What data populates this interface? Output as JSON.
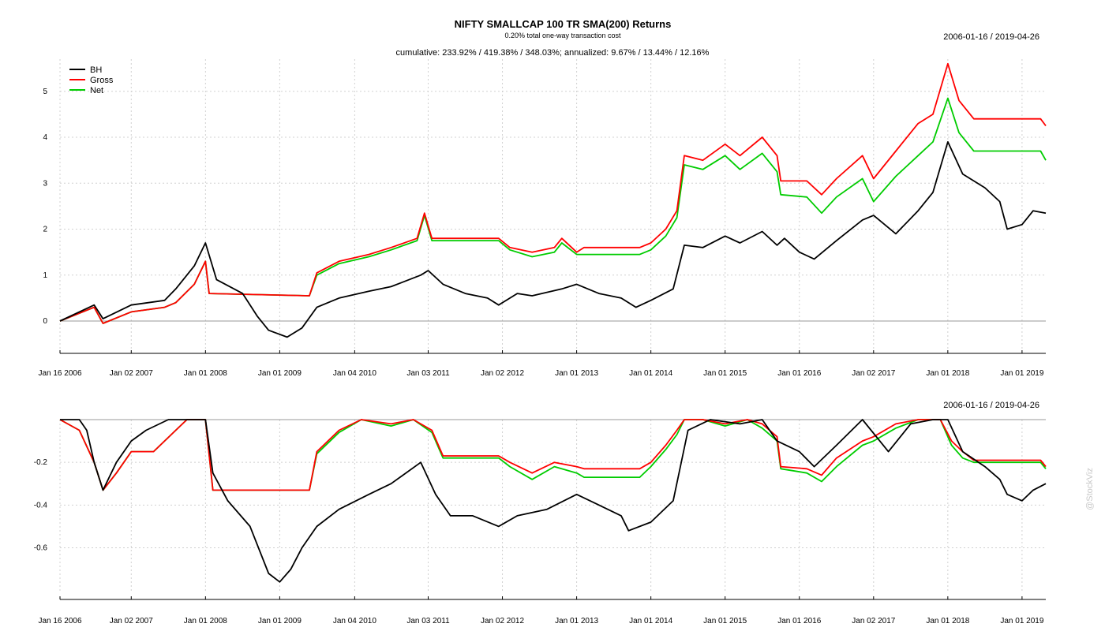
{
  "chart_data": [
    {
      "type": "line",
      "title": "NIFTY SMALLCAP 100 TR SMA(200) Returns",
      "subtitle": "0.20% total one-way transaction cost",
      "stats": "cumulative: 233.92% / 419.38% / 348.03%; annualized: 9.67% / 13.44% / 12.16%",
      "date_range": "2006-01-16 / 2019-04-26",
      "x_range": [
        "2006-01-16",
        "2019-04-26"
      ],
      "x_tick_labels": [
        "Jan 16 2006",
        "Jan 02 2007",
        "Jan 01 2008",
        "Jan 01 2009",
        "Jan 04 2010",
        "Jan 03 2011",
        "Jan 02 2012",
        "Jan 01 2013",
        "Jan 01 2014",
        "Jan 01 2015",
        "Jan 01 2016",
        "Jan 02 2017",
        "Jan 01 2018",
        "Jan 01 2019"
      ],
      "x_ticks": [
        2006.04,
        2007.0,
        2008.0,
        2009.0,
        2010.01,
        2011.0,
        2012.0,
        2013.0,
        2014.0,
        2015.0,
        2016.0,
        2017.0,
        2018.0,
        2019.0
      ],
      "y_ticks": [
        0,
        1,
        2,
        3,
        4,
        5
      ],
      "ylim": [
        -0.6,
        5.7
      ],
      "grid": true,
      "legend_position": "top-left",
      "series": [
        {
          "name": "BH",
          "color": "#000000",
          "x": [
            2006.04,
            2006.5,
            2006.62,
            2007.0,
            2007.45,
            2007.6,
            2007.85,
            2008.0,
            2008.15,
            2008.5,
            2008.7,
            2008.85,
            2009.1,
            2009.3,
            2009.5,
            2009.8,
            2010.2,
            2010.5,
            2010.9,
            2011.0,
            2011.2,
            2011.5,
            2011.8,
            2011.95,
            2012.2,
            2012.4,
            2012.8,
            2013.0,
            2013.3,
            2013.6,
            2013.8,
            2014.0,
            2014.3,
            2014.45,
            2014.7,
            2015.0,
            2015.2,
            2015.5,
            2015.7,
            2015.8,
            2016.0,
            2016.2,
            2016.5,
            2016.85,
            2017.0,
            2017.3,
            2017.6,
            2017.8,
            2018.0,
            2018.2,
            2018.5,
            2018.7,
            2018.8,
            2019.0,
            2019.15,
            2019.32
          ],
          "y": [
            0,
            0.35,
            0.05,
            0.35,
            0.45,
            0.7,
            1.2,
            1.7,
            0.9,
            0.6,
            0.1,
            -0.2,
            -0.35,
            -0.15,
            0.3,
            0.5,
            0.65,
            0.75,
            1.0,
            1.1,
            0.8,
            0.6,
            0.5,
            0.35,
            0.6,
            0.55,
            0.7,
            0.8,
            0.6,
            0.5,
            0.3,
            0.45,
            0.7,
            1.65,
            1.6,
            1.85,
            1.7,
            1.95,
            1.65,
            1.8,
            1.5,
            1.35,
            1.75,
            2.2,
            2.3,
            1.9,
            2.4,
            2.8,
            3.9,
            3.2,
            2.9,
            2.6,
            2.0,
            2.1,
            2.4,
            2.35
          ]
        },
        {
          "name": "Gross",
          "color": "#ff0000",
          "x": [
            2006.04,
            2006.5,
            2006.62,
            2007.0,
            2007.45,
            2007.6,
            2007.85,
            2008.0,
            2008.05,
            2009.4,
            2009.5,
            2009.8,
            2010.2,
            2010.5,
            2010.85,
            2010.95,
            2011.05,
            2011.95,
            2012.1,
            2012.4,
            2012.7,
            2012.8,
            2013.0,
            2013.1,
            2013.85,
            2014.0,
            2014.2,
            2014.35,
            2014.45,
            2014.7,
            2015.0,
            2015.2,
            2015.5,
            2015.7,
            2015.75,
            2016.1,
            2016.3,
            2016.5,
            2016.85,
            2017.0,
            2017.3,
            2017.6,
            2017.8,
            2018.0,
            2018.15,
            2018.35,
            2019.25,
            2019.32
          ],
          "y": [
            0,
            0.3,
            -0.05,
            0.2,
            0.3,
            0.4,
            0.8,
            1.3,
            0.6,
            0.55,
            1.05,
            1.3,
            1.45,
            1.6,
            1.8,
            2.35,
            1.8,
            1.8,
            1.6,
            1.5,
            1.6,
            1.8,
            1.5,
            1.6,
            1.6,
            1.7,
            2.0,
            2.4,
            3.6,
            3.5,
            3.85,
            3.6,
            4.0,
            3.6,
            3.05,
            3.05,
            2.75,
            3.1,
            3.6,
            3.1,
            3.7,
            4.3,
            4.5,
            5.6,
            4.8,
            4.4,
            4.4,
            4.25
          ]
        },
        {
          "name": "Net",
          "color": "#00cc00",
          "x": [
            2006.04,
            2006.5,
            2006.62,
            2007.0,
            2007.45,
            2007.6,
            2007.85,
            2008.0,
            2008.05,
            2009.4,
            2009.5,
            2009.8,
            2010.2,
            2010.5,
            2010.85,
            2010.95,
            2011.05,
            2011.95,
            2012.1,
            2012.4,
            2012.7,
            2012.8,
            2013.0,
            2013.1,
            2013.85,
            2014.0,
            2014.2,
            2014.35,
            2014.45,
            2014.7,
            2015.0,
            2015.2,
            2015.5,
            2015.7,
            2015.75,
            2016.1,
            2016.3,
            2016.5,
            2016.85,
            2017.0,
            2017.3,
            2017.6,
            2017.8,
            2018.0,
            2018.15,
            2018.35,
            2019.25,
            2019.32
          ],
          "y": [
            0,
            0.3,
            -0.05,
            0.2,
            0.3,
            0.4,
            0.8,
            1.3,
            0.6,
            0.55,
            1.0,
            1.25,
            1.4,
            1.55,
            1.75,
            2.3,
            1.75,
            1.75,
            1.55,
            1.4,
            1.5,
            1.7,
            1.45,
            1.45,
            1.45,
            1.55,
            1.85,
            2.25,
            3.4,
            3.3,
            3.6,
            3.3,
            3.65,
            3.25,
            2.75,
            2.7,
            2.35,
            2.7,
            3.1,
            2.6,
            3.15,
            3.6,
            3.9,
            4.85,
            4.1,
            3.7,
            3.7,
            3.5
          ]
        }
      ]
    },
    {
      "type": "line",
      "title": "",
      "date_range": "2006-01-16 / 2019-04-26",
      "x_range": [
        "2006-01-16",
        "2019-04-26"
      ],
      "x_tick_labels": [
        "Jan 16 2006",
        "Jan 02 2007",
        "Jan 01 2008",
        "Jan 01 2009",
        "Jan 04 2010",
        "Jan 03 2011",
        "Jan 02 2012",
        "Jan 01 2013",
        "Jan 01 2014",
        "Jan 01 2015",
        "Jan 01 2016",
        "Jan 02 2017",
        "Jan 01 2018",
        "Jan 01 2019"
      ],
      "x_ticks": [
        2006.04,
        2007.0,
        2008.0,
        2009.0,
        2010.01,
        2011.0,
        2012.0,
        2013.0,
        2014.0,
        2015.0,
        2016.0,
        2017.0,
        2018.0,
        2019.0
      ],
      "y_ticks": [
        -0.2,
        -0.4,
        -0.6
      ],
      "y_tick_labels": [
        "-0.2",
        "-0.4",
        "-0.6"
      ],
      "ylim": [
        -0.805,
        0.0
      ],
      "grid": true,
      "series": [
        {
          "name": "BH",
          "color": "#000000",
          "x": [
            2006.04,
            2006.3,
            2006.4,
            2006.5,
            2006.62,
            2006.8,
            2007.0,
            2007.2,
            2007.5,
            2007.8,
            2008.0,
            2008.1,
            2008.3,
            2008.6,
            2008.85,
            2009.0,
            2009.15,
            2009.3,
            2009.5,
            2009.8,
            2010.2,
            2010.5,
            2010.9,
            2011.1,
            2011.3,
            2011.6,
            2011.95,
            2012.2,
            2012.6,
            2013.0,
            2013.3,
            2013.6,
            2013.7,
            2014.0,
            2014.3,
            2014.5,
            2014.8,
            2015.2,
            2015.5,
            2015.7,
            2016.0,
            2016.2,
            2016.5,
            2016.85,
            2017.2,
            2017.5,
            2017.8,
            2018.0,
            2018.2,
            2018.5,
            2018.7,
            2018.8,
            2019.0,
            2019.15,
            2019.32
          ],
          "y": [
            0,
            0,
            -0.05,
            -0.2,
            -0.33,
            -0.2,
            -0.1,
            -0.05,
            0,
            0,
            0,
            -0.25,
            -0.38,
            -0.5,
            -0.72,
            -0.76,
            -0.7,
            -0.6,
            -0.5,
            -0.42,
            -0.35,
            -0.3,
            -0.2,
            -0.35,
            -0.45,
            -0.45,
            -0.5,
            -0.45,
            -0.42,
            -0.35,
            -0.4,
            -0.45,
            -0.52,
            -0.48,
            -0.38,
            -0.05,
            0,
            -0.02,
            0,
            -0.1,
            -0.15,
            -0.22,
            -0.12,
            0,
            -0.15,
            -0.02,
            0,
            0,
            -0.15,
            -0.22,
            -0.28,
            -0.35,
            -0.38,
            -0.33,
            -0.3
          ]
        },
        {
          "name": "Gross",
          "color": "#ff0000",
          "x": [
            2006.04,
            2006.3,
            2006.5,
            2006.62,
            2006.8,
            2007.0,
            2007.3,
            2007.6,
            2007.75,
            2008.0,
            2008.1,
            2009.4,
            2009.5,
            2009.8,
            2010.1,
            2010.5,
            2010.8,
            2011.05,
            2011.2,
            2011.95,
            2012.1,
            2012.4,
            2012.7,
            2013.0,
            2013.1,
            2013.85,
            2014.0,
            2014.2,
            2014.35,
            2014.45,
            2014.7,
            2015.0,
            2015.3,
            2015.5,
            2015.7,
            2015.75,
            2016.1,
            2016.3,
            2016.5,
            2016.85,
            2017.0,
            2017.3,
            2017.6,
            2017.9,
            2018.05,
            2018.2,
            2018.35,
            2019.25,
            2019.32
          ],
          "y": [
            0,
            -0.05,
            -0.2,
            -0.33,
            -0.25,
            -0.15,
            -0.15,
            -0.05,
            0,
            0,
            -0.33,
            -0.33,
            -0.15,
            -0.05,
            0,
            -0.02,
            0,
            -0.05,
            -0.17,
            -0.17,
            -0.2,
            -0.25,
            -0.2,
            -0.22,
            -0.23,
            -0.23,
            -0.2,
            -0.12,
            -0.05,
            0,
            0,
            -0.02,
            0,
            -0.02,
            -0.08,
            -0.22,
            -0.23,
            -0.26,
            -0.18,
            -0.1,
            -0.08,
            -0.02,
            0,
            0,
            -0.1,
            -0.15,
            -0.19,
            -0.19,
            -0.22
          ]
        },
        {
          "name": "Net",
          "color": "#00cc00",
          "x": [
            2006.04,
            2006.3,
            2006.5,
            2006.62,
            2006.8,
            2007.0,
            2007.3,
            2007.6,
            2007.75,
            2008.0,
            2008.1,
            2009.4,
            2009.5,
            2009.8,
            2010.1,
            2010.5,
            2010.8,
            2011.05,
            2011.2,
            2011.95,
            2012.1,
            2012.4,
            2012.7,
            2013.0,
            2013.1,
            2013.85,
            2014.0,
            2014.2,
            2014.35,
            2014.45,
            2014.7,
            2015.0,
            2015.3,
            2015.5,
            2015.7,
            2015.75,
            2016.1,
            2016.3,
            2016.5,
            2016.85,
            2017.0,
            2017.3,
            2017.6,
            2017.9,
            2018.05,
            2018.2,
            2018.35,
            2019.25,
            2019.32
          ],
          "y": [
            0,
            -0.05,
            -0.2,
            -0.33,
            -0.25,
            -0.15,
            -0.15,
            -0.05,
            0,
            0,
            -0.33,
            -0.33,
            -0.16,
            -0.06,
            0,
            -0.03,
            0,
            -0.06,
            -0.18,
            -0.18,
            -0.22,
            -0.28,
            -0.22,
            -0.25,
            -0.27,
            -0.27,
            -0.22,
            -0.14,
            -0.07,
            0,
            0,
            -0.03,
            0,
            -0.04,
            -0.1,
            -0.23,
            -0.25,
            -0.29,
            -0.22,
            -0.12,
            -0.1,
            -0.04,
            0,
            0,
            -0.12,
            -0.18,
            -0.2,
            -0.2,
            -0.23
          ]
        }
      ]
    }
  ],
  "watermark": "@StockViz"
}
